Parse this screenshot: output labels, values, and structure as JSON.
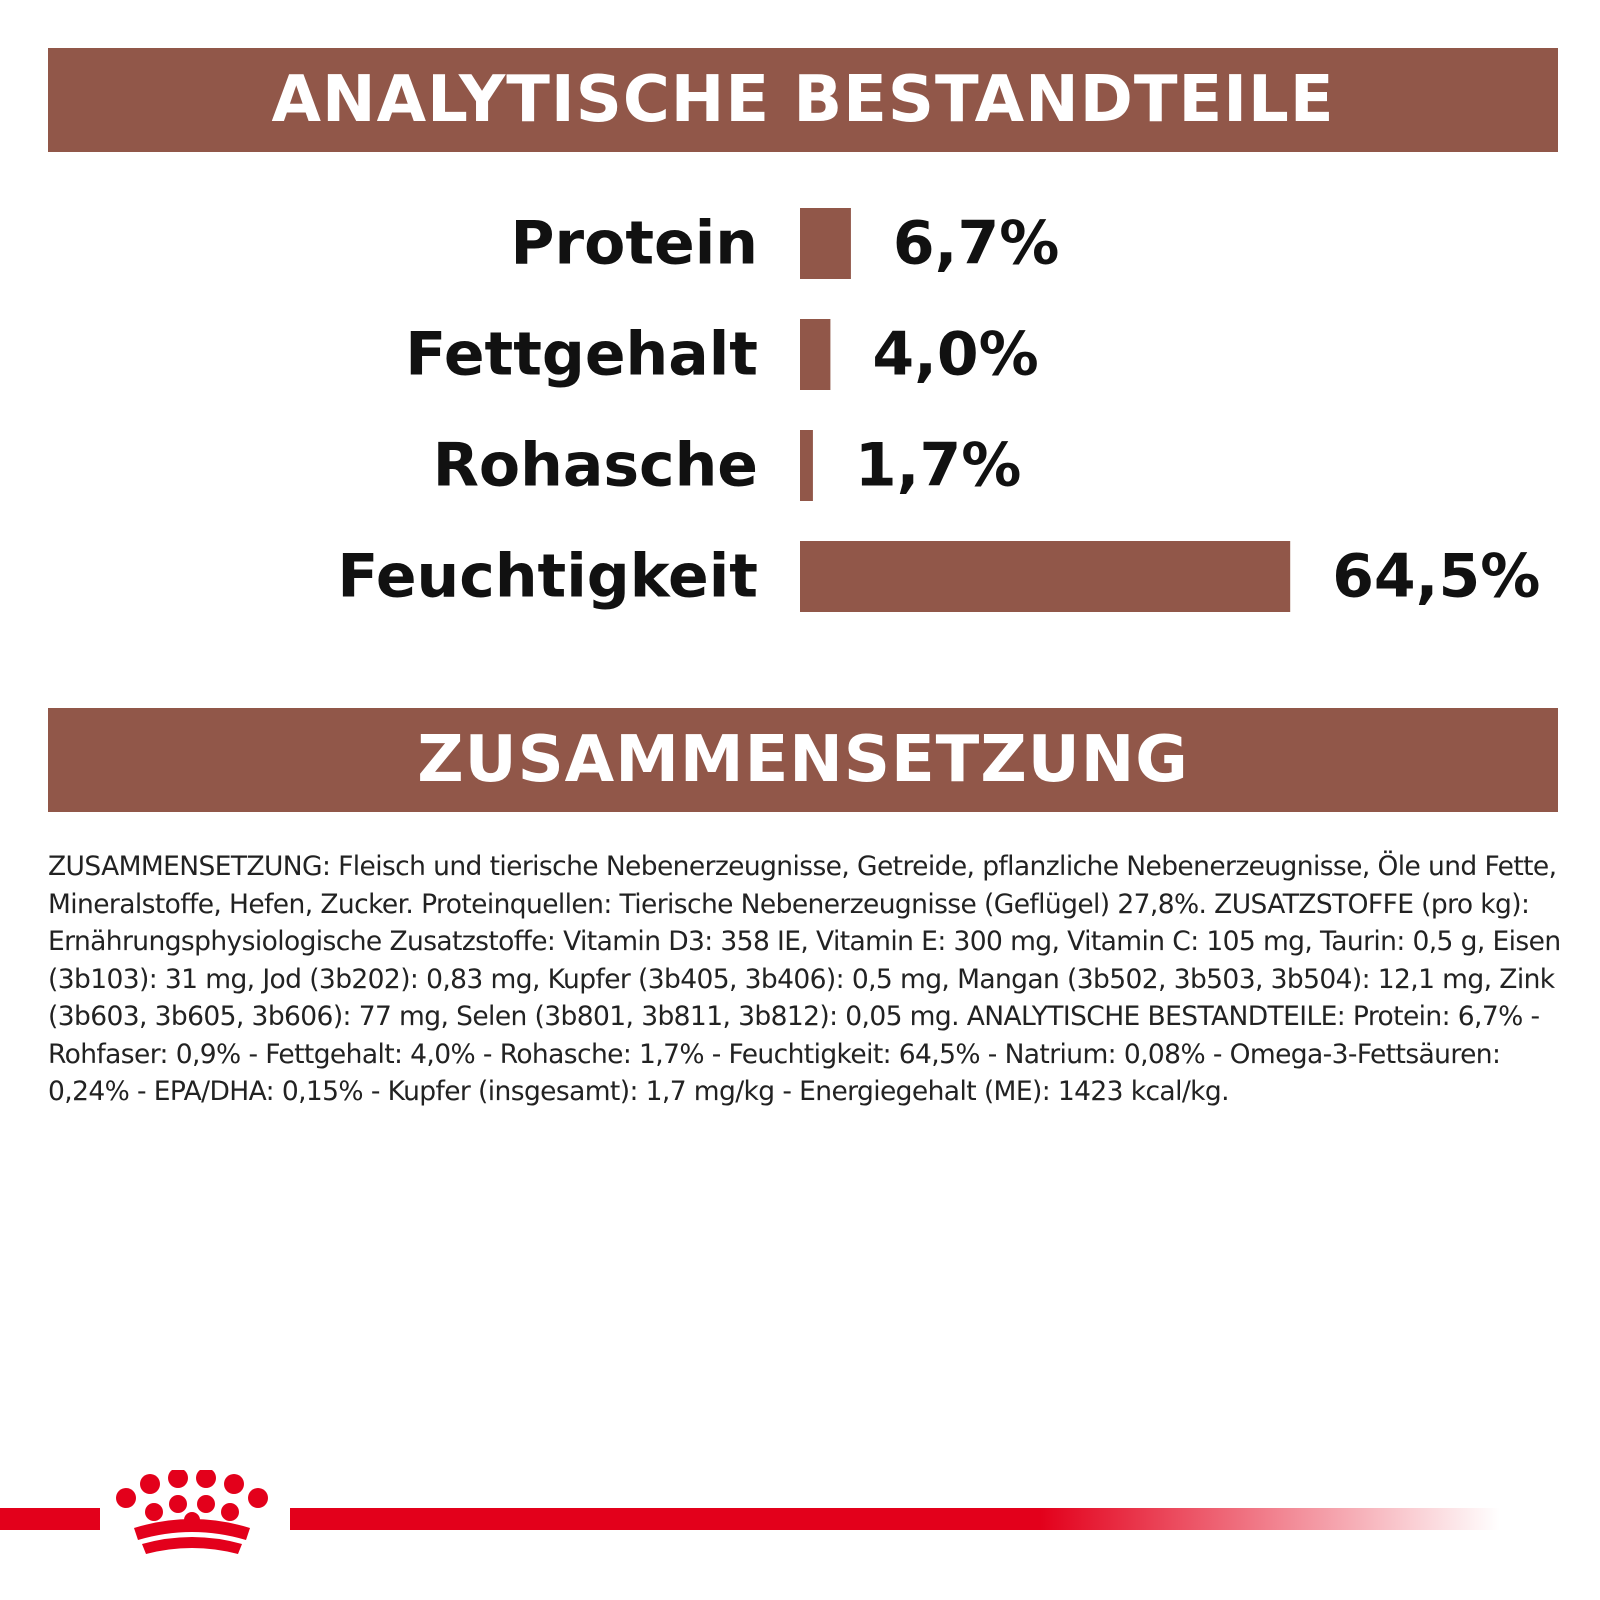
{
  "headers": {
    "analysis_title": "ANALYTISCHE BESTANDTEILE",
    "composition_title": "ZUSAMMENSETZUNG"
  },
  "chart_data": {
    "type": "bar",
    "orientation": "horizontal",
    "categories": [
      "Protein",
      "Fettgehalt",
      "Rohasche",
      "Feuchtigkeit"
    ],
    "values": [
      6.7,
      4.0,
      1.7,
      64.5
    ],
    "value_labels": [
      "6,7%",
      "4,0%",
      "1,7%",
      "64,5%"
    ],
    "unit": "%",
    "bar_color": "#915749",
    "grid": false,
    "legend": "none"
  },
  "composition_text": "ZUSAMMENSETZUNG: Fleisch und tierische Nebenerzeugnisse, Getreide, pflanzliche Nebenerzeugnisse, Öle und Fette, Mineralstoffe, Hefen, Zucker. Proteinquellen: Tierische Nebenerzeugnisse (Geflügel) 27,8%. ZUSATZSTOFFE (pro kg): Ernährungsphysiologische Zusatzstoffe: Vitamin D3: 358 IE, Vitamin E: 300 mg, Vitamin C: 105 mg, Taurin: 0,5 g, Eisen (3b103): 31 mg, Jod (3b202): 0,83 mg, Kupfer (3b405, 3b406): 0,5 mg, Mangan (3b502, 3b503, 3b504): 12,1 mg, Zink (3b603, 3b605, 3b606): 77 mg, Selen (3b801, 3b811, 3b812): 0,05 mg. ANALYTISCHE BESTANDTEILE: Protein: 6,7% - Rohfaser: 0,9% - Fettgehalt: 4,0% - Rohasche: 1,7% - Feuchtigkeit: 64,5% - Natrium: 0,08% - Omega-3-Fettsäuren: 0,24% - EPA/DHA: 0,15% - Kupfer (insgesamt): 1,7 mg/kg - Energiegehalt (ME): 1423 kcal/kg.",
  "brand": {
    "logo": "crown-logo-icon",
    "accent_color": "#e3001b"
  }
}
